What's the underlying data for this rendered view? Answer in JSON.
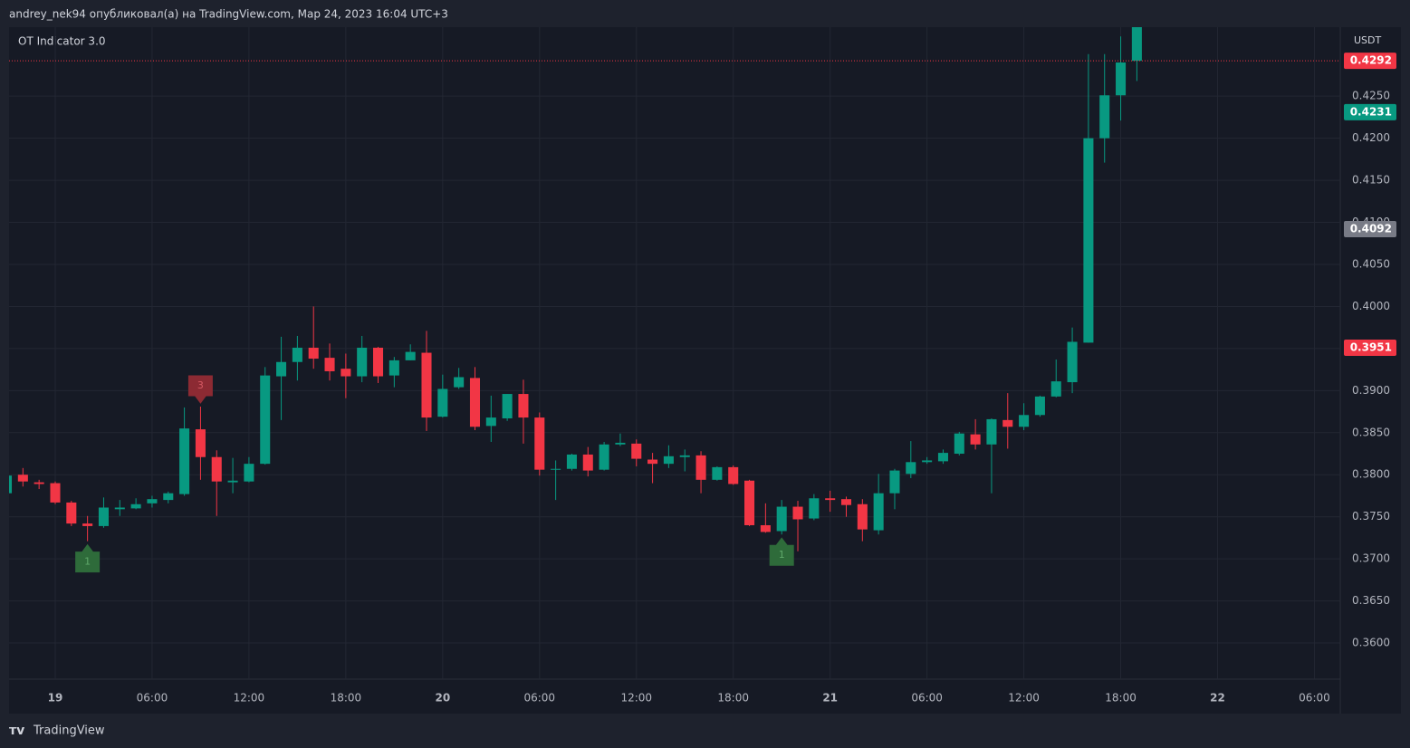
{
  "header": {
    "caption": "andrey_nek94 опубликовал(а) на TradingView.com, Мар 24, 2023 16:04 UTC+3",
    "brand": "TradingView"
  },
  "chart_data": {
    "type": "candlestick",
    "title": "OT Indicator 3.0",
    "y_unit": "USDT",
    "up_color": "#089981",
    "down_color": "#f23645",
    "grid": true,
    "x": [
      -3,
      -2,
      -1,
      0,
      1,
      2,
      3,
      4,
      5,
      6,
      7,
      8,
      9,
      10,
      11,
      12,
      13,
      14,
      15,
      16,
      17,
      18,
      19,
      20,
      21,
      22,
      23,
      24,
      25,
      26,
      27,
      28,
      29,
      30,
      31,
      32,
      33,
      34,
      35,
      36,
      37,
      38,
      39,
      40,
      41,
      42,
      43,
      44,
      45,
      46,
      47,
      48,
      49,
      50,
      51,
      52,
      53,
      54,
      55,
      56,
      57,
      58,
      59,
      60,
      61,
      62,
      63,
      64,
      65,
      66,
      67
    ],
    "open": [
      0.3778,
      0.38,
      0.3791,
      0.379,
      0.3767,
      0.3742,
      0.3739,
      0.3759,
      0.376,
      0.3766,
      0.377,
      0.3777,
      0.3854,
      0.3821,
      0.3791,
      0.3792,
      0.3813,
      0.3917,
      0.3934,
      0.3951,
      0.3939,
      0.3926,
      0.3917,
      0.3951,
      0.3918,
      0.3936,
      0.3945,
      0.3869,
      0.3904,
      0.3915,
      0.3858,
      0.3867,
      0.3896,
      0.3868,
      0.3806,
      0.3807,
      0.3824,
      0.3806,
      0.3836,
      0.3837,
      0.3818,
      0.3813,
      0.3821,
      0.3823,
      0.3794,
      0.3809,
      0.3793,
      0.374,
      0.3733,
      0.3762,
      0.3748,
      0.3772,
      0.3771,
      0.3765,
      0.3734,
      0.3778,
      0.3801,
      0.3815,
      0.3816,
      0.3825,
      0.3848,
      0.3836,
      0.3865,
      0.3857,
      0.3871,
      0.3893,
      0.391,
      0.3957,
      0.42,
      0.4251,
      0.4292
    ],
    "high": [
      0.38,
      0.3808,
      0.3794,
      0.3792,
      0.3769,
      0.3751,
      0.3773,
      0.377,
      0.3772,
      0.3775,
      0.378,
      0.388,
      0.3881,
      0.3829,
      0.382,
      0.3821,
      0.3928,
      0.3964,
      0.3965,
      0.4,
      0.3956,
      0.3944,
      0.3965,
      0.3952,
      0.394,
      0.3955,
      0.3971,
      0.3919,
      0.3927,
      0.3928,
      0.3894,
      0.3896,
      0.3913,
      0.3874,
      0.3817,
      0.3825,
      0.3833,
      0.3839,
      0.3849,
      0.3842,
      0.3826,
      0.3835,
      0.383,
      0.3828,
      0.381,
      0.3811,
      0.3794,
      0.3766,
      0.377,
      0.3769,
      0.3777,
      0.3781,
      0.3774,
      0.3771,
      0.3801,
      0.3807,
      0.384,
      0.3821,
      0.383,
      0.3851,
      0.3866,
      0.3867,
      0.3897,
      0.3885,
      0.3894,
      0.3937,
      0.3975,
      0.43,
      0.43,
      0.4321,
      0.434
    ],
    "low": [
      0.3776,
      0.3786,
      0.3783,
      0.3765,
      0.3739,
      0.3721,
      0.3737,
      0.3751,
      0.3759,
      0.3761,
      0.3766,
      0.3775,
      0.3794,
      0.3751,
      0.3778,
      0.3791,
      0.3812,
      0.3865,
      0.3912,
      0.3926,
      0.3912,
      0.3891,
      0.391,
      0.3909,
      0.3904,
      0.3936,
      0.3852,
      0.3868,
      0.3902,
      0.3853,
      0.3839,
      0.3864,
      0.3837,
      0.3799,
      0.377,
      0.3805,
      0.3798,
      0.3805,
      0.3834,
      0.381,
      0.379,
      0.3808,
      0.3804,
      0.3778,
      0.3793,
      0.3788,
      0.3739,
      0.3731,
      0.3729,
      0.3709,
      0.3746,
      0.3756,
      0.375,
      0.3721,
      0.3729,
      0.3759,
      0.3796,
      0.3813,
      0.3813,
      0.3823,
      0.383,
      0.3778,
      0.3831,
      0.3853,
      0.3869,
      0.3892,
      0.3897,
      0.3957,
      0.4171,
      0.4221,
      0.4268
    ],
    "close": [
      0.3799,
      0.3792,
      0.3789,
      0.3767,
      0.3742,
      0.3739,
      0.3761,
      0.3761,
      0.3765,
      0.3771,
      0.3778,
      0.3855,
      0.3821,
      0.3792,
      0.3793,
      0.3813,
      0.3918,
      0.3934,
      0.3951,
      0.3938,
      0.3923,
      0.3917,
      0.3951,
      0.3917,
      0.3936,
      0.3946,
      0.3868,
      0.3902,
      0.3916,
      0.3857,
      0.3868,
      0.3896,
      0.3868,
      0.3806,
      0.3807,
      0.3824,
      0.3805,
      0.3836,
      0.3838,
      0.3819,
      0.3813,
      0.3822,
      0.3823,
      0.3794,
      0.3809,
      0.3789,
      0.374,
      0.3732,
      0.3762,
      0.3747,
      0.3772,
      0.377,
      0.3764,
      0.3735,
      0.3778,
      0.3805,
      0.3815,
      0.3817,
      0.3826,
      0.3849,
      0.3836,
      0.3866,
      0.3857,
      0.3871,
      0.3893,
      0.3911,
      0.3958,
      0.42,
      0.4251,
      0.429,
      0.434
    ],
    "xlim": [
      -2.86,
      79.6
    ],
    "xticks": [
      {
        "value": 0,
        "label": "19"
      },
      {
        "value": 6,
        "label": "06:00"
      },
      {
        "value": 12,
        "label": "12:00"
      },
      {
        "value": 18,
        "label": "18:00"
      },
      {
        "value": 24,
        "label": "20"
      },
      {
        "value": 30,
        "label": "06:00"
      },
      {
        "value": 36,
        "label": "12:00"
      },
      {
        "value": 42,
        "label": "18:00"
      },
      {
        "value": 48,
        "label": "21"
      },
      {
        "value": 54,
        "label": "06:00"
      },
      {
        "value": 60,
        "label": "12:00"
      },
      {
        "value": 66,
        "label": "18:00"
      },
      {
        "value": 72,
        "label": "22"
      },
      {
        "value": 78,
        "label": "06:00"
      }
    ],
    "ylim": [
      0.3557,
      0.4332
    ],
    "yticks": [
      {
        "value": 0.36,
        "label": "0.3600"
      },
      {
        "value": 0.365,
        "label": "0.3650"
      },
      {
        "value": 0.37,
        "label": "0.3700"
      },
      {
        "value": 0.375,
        "label": "0.3750"
      },
      {
        "value": 0.38,
        "label": "0.3800"
      },
      {
        "value": 0.385,
        "label": "0.3850"
      },
      {
        "value": 0.39,
        "label": "0.3900"
      },
      {
        "value": 0.395,
        "label": "0.3950"
      },
      {
        "value": 0.4,
        "label": "0.4000"
      },
      {
        "value": 0.405,
        "label": "0.4050"
      },
      {
        "value": 0.41,
        "label": "0.4100"
      },
      {
        "value": 0.415,
        "label": "0.4150"
      },
      {
        "value": 0.42,
        "label": "0.4200"
      },
      {
        "value": 0.425,
        "label": "0.4250"
      }
    ],
    "price_labels": [
      {
        "value": 0.4292,
        "color": "#f23645",
        "line": true
      },
      {
        "value": 0.4231,
        "color": "#089981"
      },
      {
        "value": 0.4092,
        "color": "#787b86"
      },
      {
        "value": 0.3951,
        "color": "#f23645"
      }
    ],
    "signals": [
      {
        "x": 2,
        "text": "1",
        "position": "below",
        "color": "#2e6b3a"
      },
      {
        "x": 9,
        "text": "3",
        "position": "above",
        "color": "#8c2a33"
      },
      {
        "x": 45,
        "text": "1",
        "position": "below",
        "color": "#2e6b3a"
      }
    ]
  }
}
